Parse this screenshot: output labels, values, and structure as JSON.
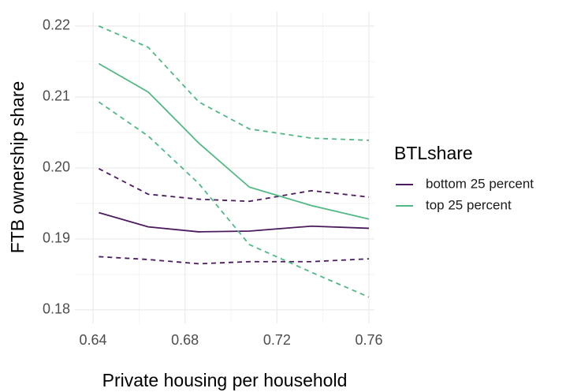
{
  "chart_data": {
    "type": "line",
    "x_label": "Private housing per household",
    "y_label": "FTB ownership share",
    "legend_title": "BTLshare",
    "legend_position": "right",
    "x": [
      0.6425,
      0.664,
      0.686,
      0.708,
      0.735,
      0.76
    ],
    "series": [
      {
        "name": "bottom 25 percent",
        "color": "#4b1a5c",
        "values": [
          0.1937,
          0.1917,
          0.191,
          0.1911,
          0.1918,
          0.1915
        ],
        "lower": [
          0.1875,
          0.1871,
          0.1865,
          0.1868,
          0.1868,
          0.1872
        ],
        "upper": [
          0.1999,
          0.1963,
          0.1956,
          0.1953,
          0.1968,
          0.1959
        ]
      },
      {
        "name": "top 25 percent",
        "color": "#52b885",
        "values": [
          0.2147,
          0.2107,
          0.2035,
          0.1973,
          0.1947,
          0.1928
        ],
        "lower": [
          0.2093,
          0.2045,
          0.1978,
          0.1892,
          0.1853,
          0.1818
        ],
        "upper": [
          0.22,
          0.217,
          0.2093,
          0.2055,
          0.2042,
          0.2039
        ]
      }
    ],
    "xlim": [
      0.6321,
      0.7624
    ],
    "ylim": [
      0.1781,
      0.222
    ],
    "xticks": [
      0.64,
      0.68,
      0.72,
      0.76
    ],
    "yticks": [
      0.18,
      {
        "value": 0.19,
        "label": "0.19"
      },
      {
        "value": 0.2,
        "label": "0.20"
      },
      0.21,
      0.22
    ],
    "grid": true,
    "minor_grid": true
  }
}
